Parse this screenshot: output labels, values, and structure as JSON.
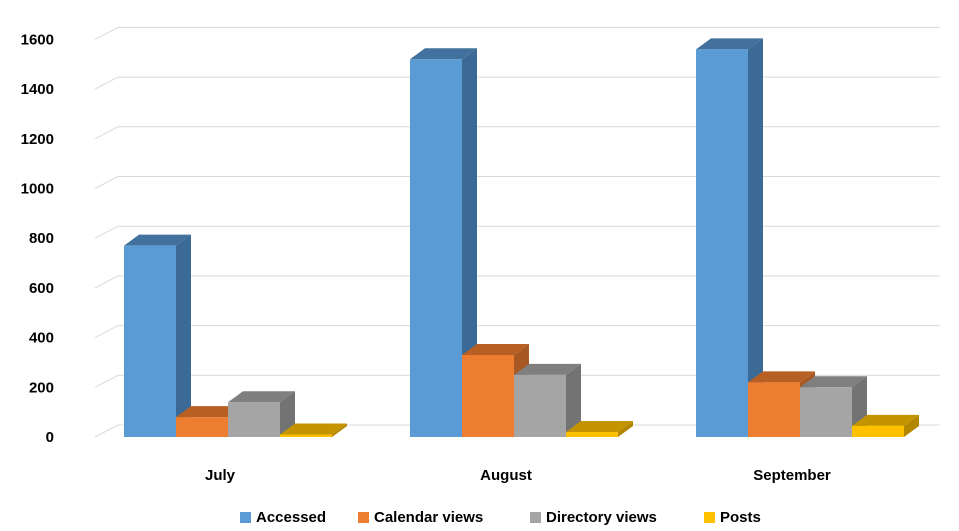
{
  "chart_data": {
    "type": "bar",
    "categories": [
      "July",
      "August",
      "September"
    ],
    "series": [
      {
        "name": "Accessed",
        "values": [
          770,
          1520,
          1560
        ],
        "color": "#5B9BD5",
        "side_color": "#3A6A95",
        "top_color": "#41719C"
      },
      {
        "name": "Calendar views",
        "values": [
          80,
          330,
          220
        ],
        "color": "#ED7D31",
        "side_color": "#A85822",
        "top_color": "#B85F24"
      },
      {
        "name": "Directory views",
        "values": [
          140,
          250,
          200
        ],
        "color": "#A5A5A5",
        "side_color": "#737373",
        "top_color": "#7F7F7F"
      },
      {
        "name": "Posts",
        "values": [
          10,
          20,
          45
        ],
        "color": "#FFC000",
        "side_color": "#B38600",
        "top_color": "#C49400"
      }
    ],
    "yticks": [
      0,
      200,
      400,
      600,
      800,
      1000,
      1200,
      1400,
      1600
    ],
    "ylim": [
      0,
      1600
    ],
    "title": "",
    "xlabel": "",
    "ylabel": "",
    "grid": true,
    "three_d": true,
    "legend_position": "bottom"
  }
}
